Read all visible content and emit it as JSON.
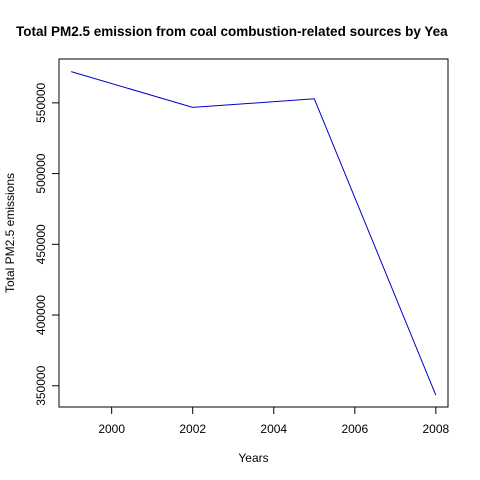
{
  "chart_data": {
    "type": "line",
    "title": "Total PM2.5 emission from coal combustion-related sources by Yea",
    "xlabel": "Years",
    "ylabel": "Total PM2.5 emissions",
    "x": [
      1999,
      2002,
      2005,
      2008
    ],
    "series": [
      {
        "values": [
          572126,
          546789,
          552881,
          343432
        ],
        "color": "#0000cc"
      }
    ],
    "xlim": [
      1998.7,
      2008.3
    ],
    "ylim": [
      335000,
      581000
    ],
    "xticks": [
      2000,
      2002,
      2004,
      2006,
      2008
    ],
    "xtick_labels": [
      "2000",
      "2002",
      "2004",
      "2006",
      "2008"
    ],
    "yticks": [
      350000,
      400000,
      450000,
      500000,
      550000
    ],
    "ytick_labels": [
      "350000",
      "400000",
      "450000",
      "500000",
      "550000"
    ],
    "grid": false
  }
}
